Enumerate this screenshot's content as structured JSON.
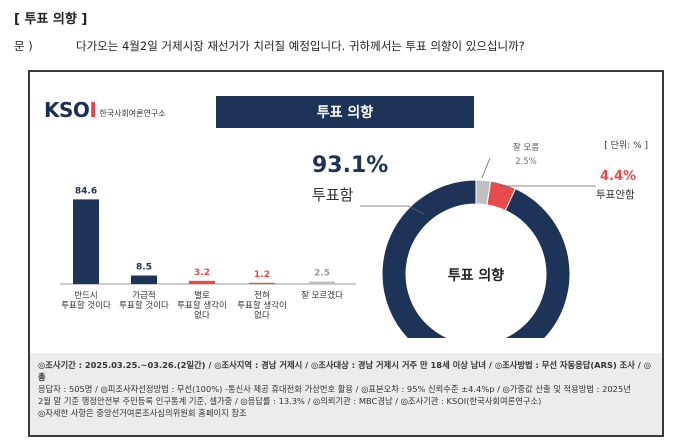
{
  "header": {
    "section_title": "[ 투표 의향 ]",
    "question_label": "문 )",
    "question_text": "다가오는 4월2일 거제시장 재선거가 치러질 예정입니다. 귀하께서는 투표 의향이 있으십니까?"
  },
  "card": {
    "logo_text": "KSOI",
    "logo_subtext": "한국사회여론연구소",
    "banner_title": "투표 의향",
    "unit_label": "[ 단위: % ]"
  },
  "colors": {
    "navy": "#1d3357",
    "red": "#e94a4a",
    "gray": "#bfbfbf",
    "banner": "#1d3357"
  },
  "chart_data": [
    {
      "type": "bar",
      "categories": [
        "반드시|투표할 것이다",
        "가급적|투표할 것이다",
        "별로|투표할 생각이|없다",
        "전혀|투표할 생각이|없다",
        "잘 모르겠다"
      ],
      "values": [
        84.6,
        8.5,
        3.2,
        1.2,
        2.5
      ],
      "value_labels": [
        "84.6",
        "8.5",
        "3.2",
        "1.2",
        "2.5"
      ],
      "value_label_colors": [
        "#1d3357",
        "#1d3357",
        "#e94a4a",
        "#e94a4a",
        "#9a9a9a"
      ],
      "bar_colors": [
        "#1d3357",
        "#1d3357",
        "#e94a4a",
        "#e94a4a",
        "#bfbfbf"
      ],
      "ylim": [
        0,
        100
      ],
      "grid": false,
      "legend": "none"
    },
    {
      "type": "pie",
      "donut": true,
      "center_label": "투표 의향",
      "slices": [
        {
          "name": "투표함",
          "value": 93.1,
          "label": "93.1%",
          "color": "#1d3357"
        },
        {
          "name": "투표안함",
          "value": 4.4,
          "label": "4.4%",
          "color": "#e94a4a"
        },
        {
          "name": "잘 모름",
          "value": 2.5,
          "label": "2.5%",
          "color": "#bfbfbf"
        }
      ]
    }
  ],
  "footer": {
    "line1_a": "◎조사기간 : 2025.03.25.~03.26.(2일간) / ",
    "line1_b": "◎조사지역 : 경남 거제시 / ",
    "line1_c": "◎조사대상 : 경남 거제시 거주 만 18세 이상 남녀 / ",
    "line1_d": "◎조사방법 : 무선 자동응답(ARS) 조사 / ◎총",
    "line2": "응답자 : 505명 / ◎피조사자선정방법 : 무선(100%) -통신사 제공 휴대전화 가상번호 활용 / ◎표본오차 : 95% 신뢰수준 ±4.4%p / ◎가중값 산출 및 적용방법 : 2025년",
    "line3": "2월 말 기준 행정안전부 주민등록 인구통계 기준, 셀가중 / ◎응답률 : 13.3% / ◎의뢰기관 : MBC경남 / ◎조사기관 : KSOI(한국사회여론연구소)",
    "line4": "◎자세한 사항은 중앙선거여론조사심의위원회 홈페이지 참조"
  }
}
